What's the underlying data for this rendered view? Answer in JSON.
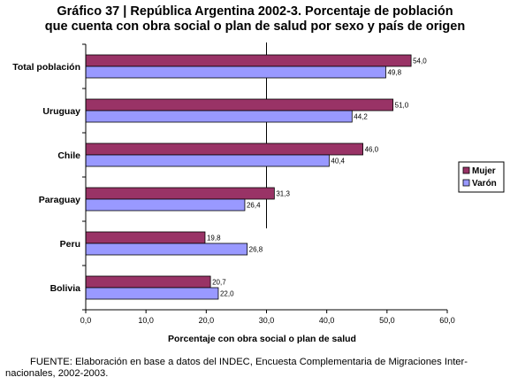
{
  "title_lines": [
    "Gráfico 37 | República Argentina 2002-3. Porcentaje de población",
    "que cuenta con obra social o plan de salud por sexo y país de origen"
  ],
  "source_note": "FUENTE: Elaboración en base a datos del INDEC, Encuesta Complementaria de Migraciones Inter- nacionales, 2002-2003.",
  "colors": {
    "mujer": "#993366",
    "varon": "#9999ff"
  },
  "chart_data": {
    "type": "bar",
    "orientation": "horizontal",
    "categories": [
      "Total población",
      "Uruguay",
      "Chile",
      "Paraguay",
      "Peru",
      "Bolivia"
    ],
    "series": [
      {
        "name": "Mujer",
        "values": [
          54.0,
          51.0,
          46.0,
          31.3,
          19.8,
          20.7
        ],
        "labels": [
          "54,0",
          "51,0",
          "46,0",
          "31,3",
          "19,8",
          "20,7"
        ]
      },
      {
        "name": "Varón",
        "values": [
          49.8,
          44.2,
          40.4,
          26.4,
          26.8,
          22.0
        ],
        "labels": [
          "49,8",
          "44,2",
          "40,4",
          "26,4",
          "26,8",
          "22,0"
        ]
      }
    ],
    "xlabel": "Porcentaje con obra social o plan de salud",
    "xlim": [
      0,
      60
    ],
    "xticks": [
      0,
      10,
      20,
      30,
      40,
      50,
      60
    ],
    "xtick_labels": [
      "0,0",
      "10,0",
      "20,0",
      "30,0",
      "40,0",
      "50,0",
      "60,0"
    ],
    "legend_position": "right",
    "grid": false
  }
}
